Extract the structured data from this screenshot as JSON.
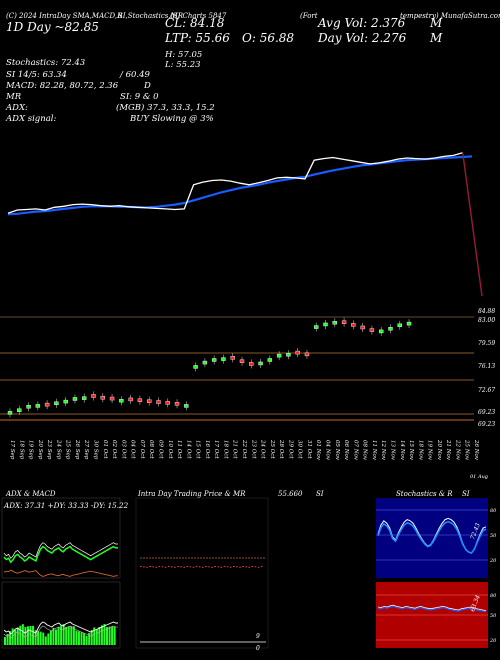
{
  "header": {
    "ticker_line": "(C) 2024 IntraDay SMA,MACD,R",
    "ticker_line_2": "SI,Stochastics,MR",
    "company_line": "(S) Charts 5847",
    "company_tail": "(Fort",
    "company_tail_2": "tempestry) MunafaSutra.com",
    "day_info": "1D Day ~82.85",
    "close_label": "CL: 84.18",
    "ltp_label": "LTP: 55.66",
    "open_label": "O: 56.88",
    "high_label": "H: 57.05",
    "low_label": "L: 55.23",
    "avg_vol": "Avg Vol: 2.376",
    "avg_vol_unit": "M",
    "day_vol": "Day Vol: 2.276",
    "day_vol_unit": "M",
    "stochastics": "Stochastics: 72.43",
    "si": "SI 14/5: 63.34",
    "si_tail": "/ 60.49",
    "macd": "MACD: 82.28, 80.72, 2.36",
    "macd_tail": "D",
    "mr": "MR",
    "mr_tail": "SI: 9 & 0",
    "adx": "ADX:",
    "adx_tail": "(MGB) 37.3, 33.3, 15.2",
    "adx_signal": "ADX signal:",
    "adx_signal_tail": "BUY Slowing @ 3%"
  },
  "bottom": {
    "adx_macd_title": "ADX & MACD",
    "adx_values": "ADX: 37.31 +DY: 33.33 -DY: 15.22",
    "intraday_title": "Intra Day Trading Price & MR",
    "intraday_value": "55.660",
    "intraday_tail": "SI",
    "stoch_title": "Stochastics & R",
    "stoch_tail": "SI",
    "rsi_readout": "72.43",
    "mr_readout": "63.34",
    "intraday_last_label": "9",
    "intraday_zero": "0"
  },
  "chart_data": {
    "type": "line",
    "price_axis_labels": [
      "84.88",
      "83.00",
      "79.59",
      "76.13",
      "72.67",
      "69.23",
      "69.23"
    ],
    "dates": [
      "17 Sep",
      "18 Sep",
      "19 Sep",
      "20 Sep",
      "23 Sep",
      "24 Sep",
      "25 Sep",
      "26 Sep",
      "27 Sep",
      "30 Sep",
      "01 Oct",
      "02 Oct",
      "03 Oct",
      "04 Oct",
      "07 Oct",
      "08 Oct",
      "09 Oct",
      "10 Oct",
      "11 Oct",
      "14 Oct",
      "15 Oct",
      "16 Oct",
      "17 Oct",
      "18 Oct",
      "21 Oct",
      "22 Oct",
      "23 Oct",
      "24 Oct",
      "25 Oct",
      "28 Oct",
      "29 Oct",
      "30 Oct",
      "31 Oct",
      "01 Nov",
      "04 Nov",
      "05 Nov",
      "06 Nov",
      "07 Nov",
      "08 Nov",
      "11 Nov",
      "12 Nov",
      "13 Nov",
      "14 Nov",
      "15 Nov",
      "18 Nov",
      "19 Nov",
      "20 Nov",
      "21 Nov",
      "22 Nov",
      "25 Nov",
      "26 Nov"
    ],
    "last_date_label": "01 Aug",
    "close_series": [
      71.2,
      71.8,
      71.9,
      72.0,
      71.8,
      72.3,
      72.5,
      72.8,
      72.9,
      72.8,
      72.6,
      72.5,
      72.6,
      72.4,
      72.3,
      72.2,
      72.1,
      72.0,
      71.9,
      72.0,
      76.5,
      77.0,
      77.3,
      77.4,
      77.2,
      76.8,
      76.5,
      76.9,
      77.3,
      77.8,
      77.9,
      77.8,
      77.6,
      81.1,
      81.4,
      81.6,
      81.3,
      81.0,
      80.7,
      80.4,
      80.6,
      80.9,
      81.3,
      81.5,
      81.4,
      81.3,
      81.5,
      81.8,
      82.0,
      82.5,
      55.2
    ],
    "sma_series": [
      71.0,
      71.1,
      71.3,
      71.5,
      71.6,
      71.8,
      72.0,
      72.2,
      72.4,
      72.5,
      72.5,
      72.5,
      72.4,
      72.4,
      72.3,
      72.3,
      72.4,
      72.6,
      72.8,
      73.1,
      73.6,
      74.1,
      74.6,
      75.1,
      75.5,
      75.9,
      76.2,
      76.5,
      76.9,
      77.2,
      77.5,
      77.8,
      78.0,
      78.4,
      78.8,
      79.2,
      79.5,
      79.8,
      80.1,
      80.3,
      80.5,
      80.7,
      80.9,
      81.1,
      81.2,
      81.3,
      81.4,
      81.5,
      81.6,
      81.7,
      81.8
    ],
    "candle_closes": [
      70.2,
      70.5,
      70.9,
      71.0,
      70.8,
      71.3,
      71.5,
      71.8,
      71.9,
      71.8,
      71.6,
      71.5,
      71.6,
      71.4,
      71.3,
      71.2,
      71.1,
      71.0,
      70.9,
      71.0,
      75.5,
      76.0,
      76.3,
      76.4,
      76.2,
      75.8,
      75.5,
      75.9,
      76.3,
      76.8,
      76.9,
      76.8,
      76.6,
      80.1,
      80.4,
      80.6,
      80.3,
      80.0,
      79.7,
      79.4,
      79.6,
      79.9,
      80.3,
      80.5
    ],
    "adx_series": [
      30,
      28,
      29,
      26,
      28,
      31,
      32,
      30,
      29,
      27,
      28,
      30,
      29,
      28,
      27,
      32,
      36,
      38,
      37,
      35,
      34,
      33,
      35,
      36,
      37,
      35,
      34,
      36,
      37,
      38,
      36,
      35,
      34,
      33,
      32,
      31,
      30,
      29,
      28,
      29,
      30,
      31,
      32,
      33,
      34,
      35,
      36,
      37,
      38,
      37,
      37
    ],
    "stoch_series": [
      60,
      75,
      82,
      78,
      70,
      55,
      50,
      62,
      72,
      80,
      84,
      82,
      78,
      70,
      60,
      52,
      45,
      40,
      42,
      50,
      60,
      70,
      78,
      84,
      86,
      84,
      80,
      72,
      60,
      45,
      35,
      30,
      28,
      35,
      48,
      60,
      70,
      72
    ],
    "mr_series": [
      55,
      54,
      56,
      55,
      57,
      58,
      56,
      55,
      54,
      56,
      55,
      54,
      53,
      55,
      56,
      54,
      53,
      52,
      53,
      54,
      55,
      56,
      55,
      53,
      52,
      51,
      50,
      52,
      53,
      54,
      55,
      54,
      52,
      51,
      50,
      49
    ]
  }
}
